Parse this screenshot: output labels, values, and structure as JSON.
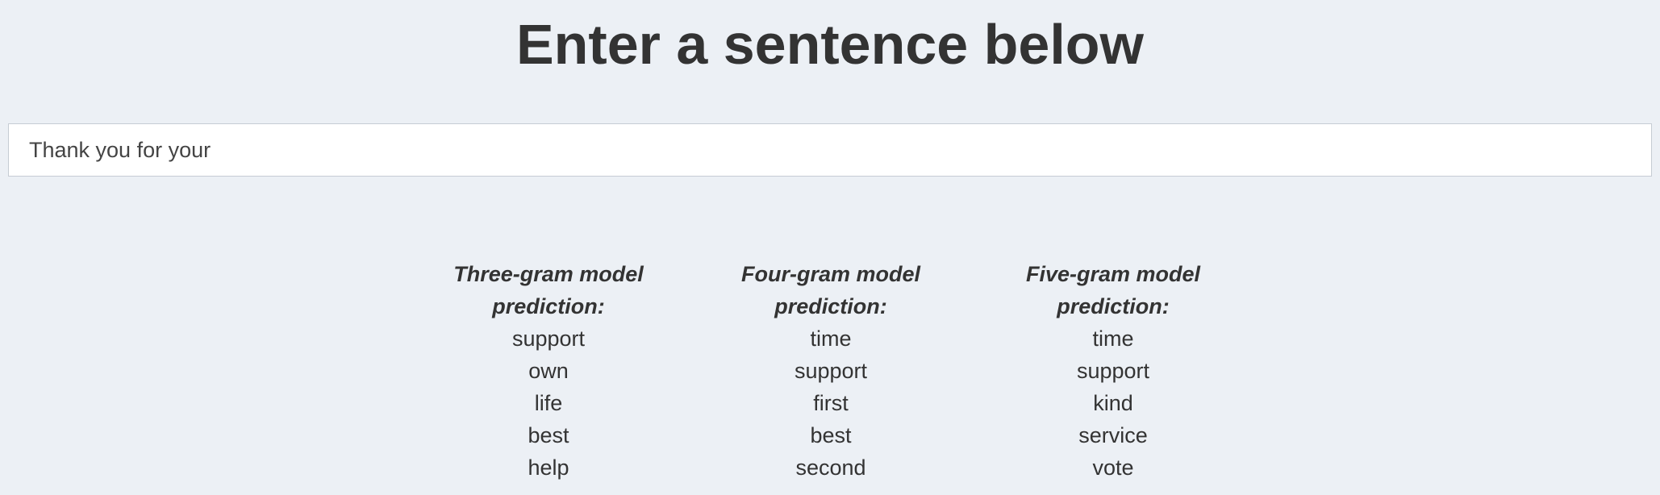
{
  "header": {
    "title": "Enter a sentence below"
  },
  "input": {
    "value": "Thank you for your"
  },
  "models": [
    {
      "heading_line1": "Three-gram model",
      "heading_line2": "prediction:",
      "words": [
        "support",
        "own",
        "life",
        "best",
        "help"
      ]
    },
    {
      "heading_line1": "Four-gram model",
      "heading_line2": "prediction:",
      "words": [
        "time",
        "support",
        "first",
        "best",
        "second"
      ]
    },
    {
      "heading_line1": "Five-gram model",
      "heading_line2": "prediction:",
      "words": [
        "time",
        "support",
        "kind",
        "service",
        "vote"
      ]
    }
  ]
}
